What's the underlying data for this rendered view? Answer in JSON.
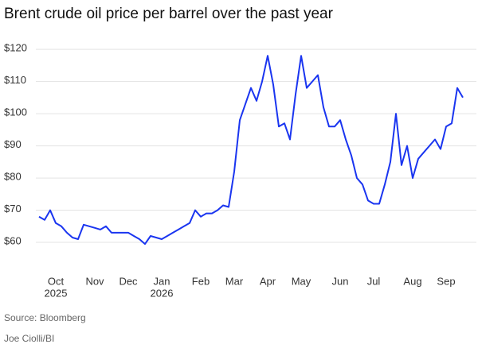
{
  "chart_data": {
    "type": "line",
    "title": "Brent crude oil price per barrel over the past year",
    "source": "Source: Bloomberg",
    "credit": "Joe Ciolli/BI",
    "categories": [
      null,
      null,
      null,
      "Oct",
      null,
      null,
      null,
      null,
      null,
      null,
      "Nov",
      null,
      null,
      null,
      null,
      null,
      "Dec",
      null,
      null,
      null,
      null,
      null,
      "Jan",
      null,
      null,
      null,
      null,
      null,
      null,
      "Feb",
      null,
      null,
      null,
      null,
      null,
      "Mar",
      null,
      null,
      null,
      null,
      null,
      "Apr",
      null,
      null,
      null,
      null,
      null,
      "May",
      null,
      null,
      null,
      null,
      null,
      null,
      "Jun",
      null,
      null,
      null,
      null,
      null,
      "Jul",
      null,
      null,
      null,
      null,
      null,
      null,
      "Aug",
      null,
      null,
      null,
      null,
      null,
      "Sep",
      null,
      null,
      null
    ],
    "category_years": [
      null,
      null,
      null,
      "2025",
      null,
      null,
      null,
      null,
      null,
      null,
      null,
      null,
      null,
      null,
      null,
      null,
      null,
      null,
      null,
      null,
      null,
      null,
      "2026",
      null,
      null,
      null,
      null,
      null,
      null,
      null,
      null,
      null,
      null,
      null,
      null,
      null,
      null,
      null,
      null,
      null,
      null,
      null,
      null,
      null,
      null,
      null,
      null,
      null,
      null,
      null,
      null,
      null,
      null,
      null,
      null,
      null,
      null,
      null,
      null,
      null,
      null,
      null,
      null,
      null,
      null,
      null,
      null,
      null,
      null,
      null,
      null,
      null,
      null,
      null,
      null,
      null,
      null
    ],
    "series": [
      {
        "name": "Brent crude",
        "color": "#1a35f0",
        "values": [
          68,
          67,
          70,
          66,
          65,
          63,
          61.5,
          61,
          65.5,
          65,
          64.5,
          64,
          65,
          63,
          63,
          63,
          63,
          62,
          61,
          59.5,
          62,
          61.5,
          61,
          62,
          63,
          64,
          65,
          66,
          70,
          68,
          69,
          69,
          70,
          71.5,
          71,
          82,
          98,
          103,
          108,
          104,
          110,
          118,
          109,
          96,
          97,
          92,
          106,
          118,
          108,
          110,
          112,
          102,
          96,
          96,
          98,
          92,
          87,
          80,
          78,
          73,
          72,
          72,
          78,
          85,
          100,
          84,
          90,
          80,
          86,
          88,
          90,
          92,
          89,
          96,
          97,
          108,
          105
        ]
      }
    ],
    "ylim": [
      51,
      122
    ],
    "yticks": [
      {
        "value": 60,
        "label": "$60"
      },
      {
        "value": 70,
        "label": "$70"
      },
      {
        "value": 80,
        "label": "$80"
      },
      {
        "value": 90,
        "label": "$90"
      },
      {
        "value": 100,
        "label": "$100"
      },
      {
        "value": 110,
        "label": "$110"
      },
      {
        "value": 120,
        "label": "$120"
      }
    ],
    "grid": true
  }
}
